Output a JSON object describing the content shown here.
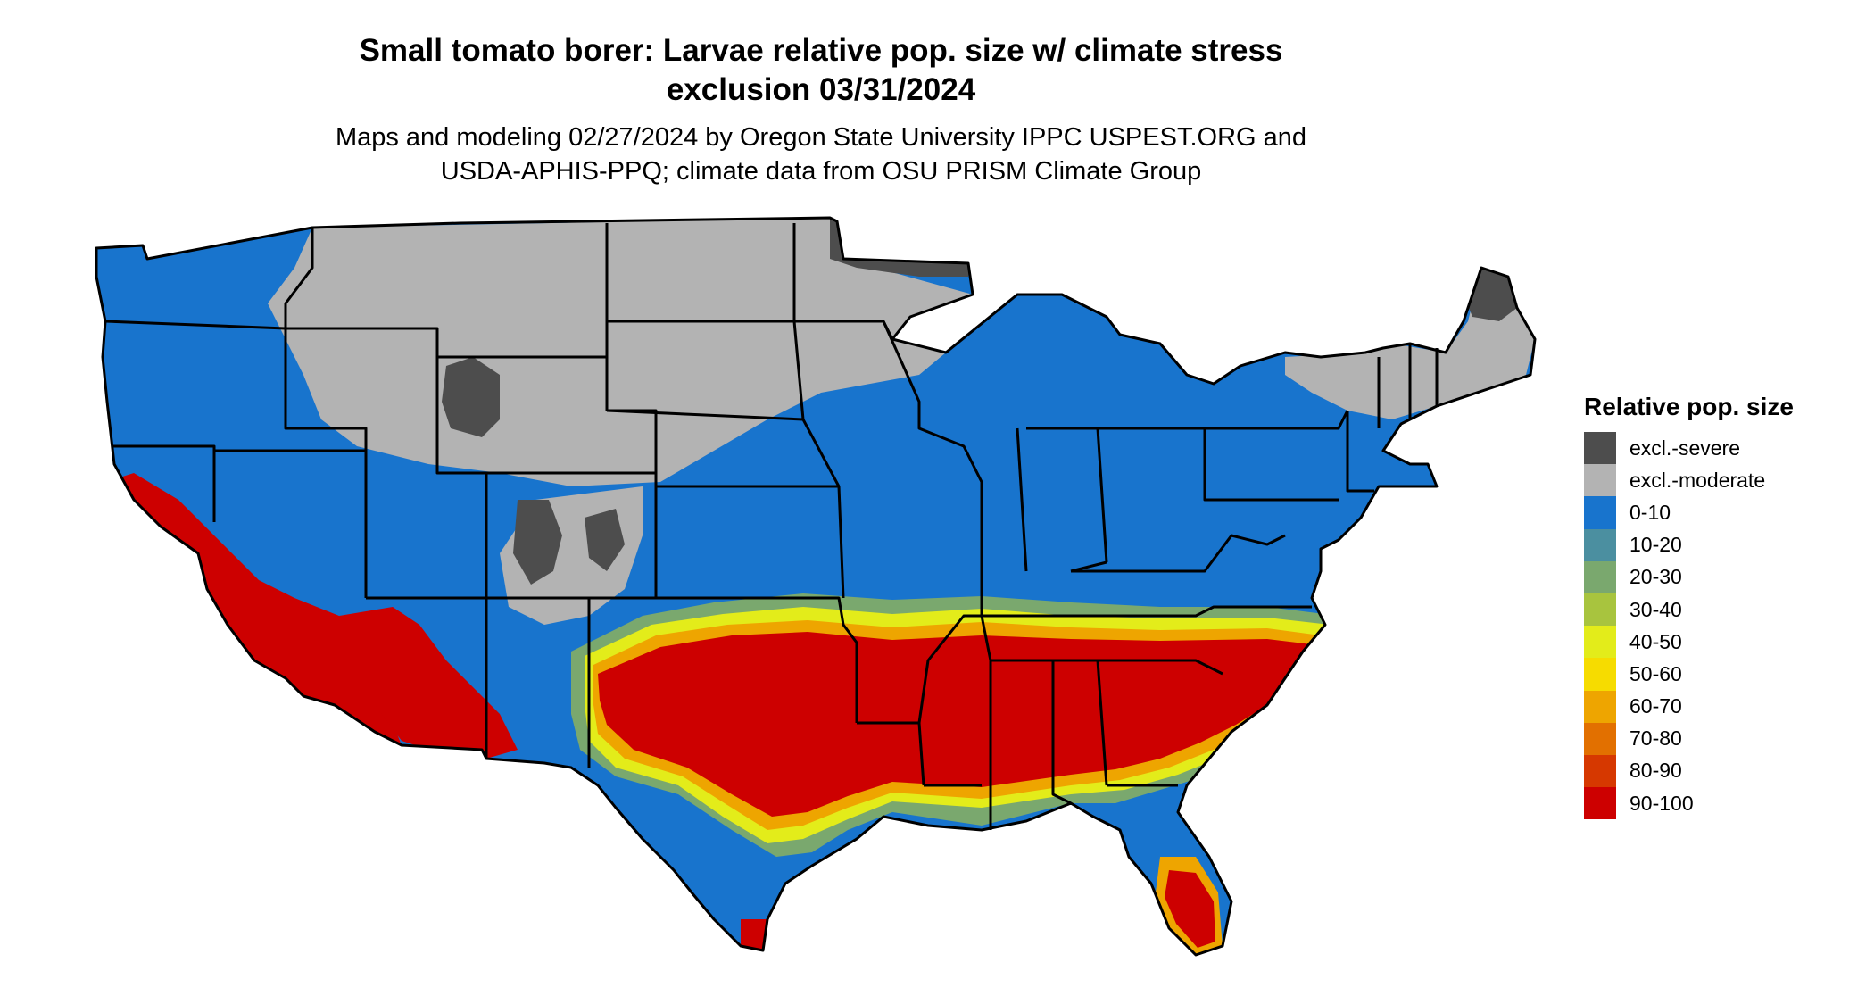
{
  "title": {
    "line1": "Small tomato borer: Larvae relative pop. size w/ climate stress",
    "line2": "exclusion 03/31/2024"
  },
  "subtitle": {
    "line1": "Maps and modeling 02/27/2024 by Oregon State University IPPC USPEST.ORG and",
    "line2": "USDA-APHIS-PPQ; climate data from OSU PRISM Climate Group"
  },
  "legend": {
    "title": "Relative pop. size",
    "items": [
      {
        "label": "excl.-severe",
        "color": "#4d4d4d"
      },
      {
        "label": "excl.-moderate",
        "color": "#b3b3b3"
      },
      {
        "label": "0-10",
        "color": "#1874cd"
      },
      {
        "label": "10-20",
        "color": "#4b8fa0"
      },
      {
        "label": "20-30",
        "color": "#7aa86e"
      },
      {
        "label": "30-40",
        "color": "#a8c43e"
      },
      {
        "label": "40-50",
        "color": "#e3ec1a"
      },
      {
        "label": "50-60",
        "color": "#f6dc00"
      },
      {
        "label": "60-70",
        "color": "#eea500"
      },
      {
        "label": "70-80",
        "color": "#e27000"
      },
      {
        "label": "80-90",
        "color": "#d63800"
      },
      {
        "label": "90-100",
        "color": "#cd0000"
      }
    ]
  }
}
